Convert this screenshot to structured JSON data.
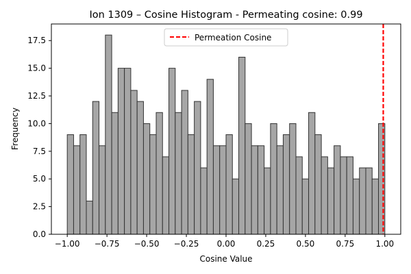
{
  "chart_data": {
    "type": "bar",
    "title": "Ion 1309 – Cosine Histogram - Permeating cosine: 0.99",
    "xlabel": "Cosine Value",
    "ylabel": "Frequency",
    "xlim": [
      -1.1,
      1.1
    ],
    "ylim": [
      0,
      19
    ],
    "bin_start": -1.0,
    "bin_width": 0.04,
    "values": [
      9,
      8,
      9,
      3,
      12,
      8,
      18,
      11,
      15,
      15,
      13,
      12,
      10,
      9,
      11,
      7,
      15,
      11,
      13,
      9,
      12,
      6,
      14,
      8,
      8,
      9,
      5,
      16,
      10,
      8,
      8,
      6,
      10,
      8,
      9,
      10,
      7,
      5,
      11,
      9,
      7,
      6,
      8,
      7,
      7,
      5,
      6,
      6,
      5,
      10
    ],
    "x_ticks": [
      -1.0,
      -0.75,
      -0.5,
      -0.25,
      0.0,
      0.25,
      0.5,
      0.75,
      1.0
    ],
    "x_tick_labels": [
      "−1.00",
      "−0.75",
      "−0.50",
      "−0.25",
      "0.00",
      "0.25",
      "0.50",
      "0.75",
      "1.00"
    ],
    "y_ticks": [
      0,
      2.5,
      5,
      7.5,
      10,
      12.5,
      15,
      17.5
    ],
    "y_tick_labels": [
      "0.0",
      "2.5",
      "5.0",
      "7.5",
      "10.0",
      "12.5",
      "15.0",
      "17.5"
    ],
    "vline": {
      "x": 0.99,
      "label": "Permeation Cosine",
      "color": "#ff0000"
    },
    "bar_color": "#a6a6a6",
    "bar_edge_color": "#333333",
    "legend": {
      "position": "top-center",
      "entries": [
        "Permeation Cosine"
      ]
    },
    "grid": false
  }
}
